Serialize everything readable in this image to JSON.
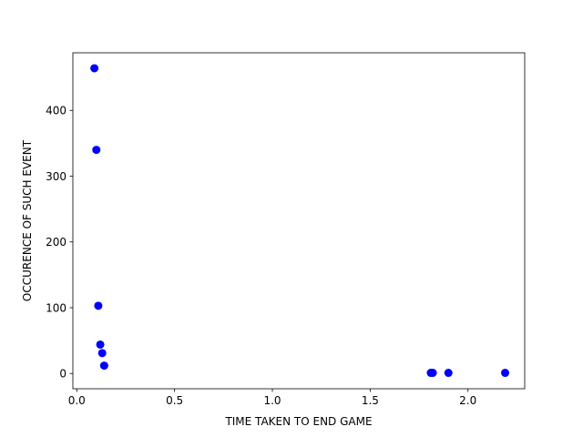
{
  "chart_data": {
    "type": "scatter",
    "title": "",
    "xlabel": "TIME TAKEN TO END GAME",
    "ylabel": "OCCURENCE OF SUCH EVENT",
    "xlim": [
      -0.02,
      2.29
    ],
    "ylim": [
      -23.2,
      487.5
    ],
    "xticks": [
      0.0,
      0.5,
      1.0,
      1.5,
      2.0
    ],
    "xtick_labels": [
      "0.0",
      "0.5",
      "1.0",
      "1.5",
      "2.0"
    ],
    "yticks": [
      0,
      100,
      200,
      300,
      400
    ],
    "ytick_labels": [
      "0",
      "100",
      "200",
      "300",
      "400"
    ],
    "grid": false,
    "legend": "none",
    "marker_color": "#0000ff",
    "points": [
      {
        "x": 0.09,
        "y": 464
      },
      {
        "x": 0.1,
        "y": 340
      },
      {
        "x": 0.11,
        "y": 103
      },
      {
        "x": 0.12,
        "y": 44
      },
      {
        "x": 0.13,
        "y": 31
      },
      {
        "x": 0.14,
        "y": 12
      },
      {
        "x": 1.81,
        "y": 1
      },
      {
        "x": 1.82,
        "y": 1
      },
      {
        "x": 1.9,
        "y": 1
      },
      {
        "x": 2.19,
        "y": 1
      }
    ]
  }
}
